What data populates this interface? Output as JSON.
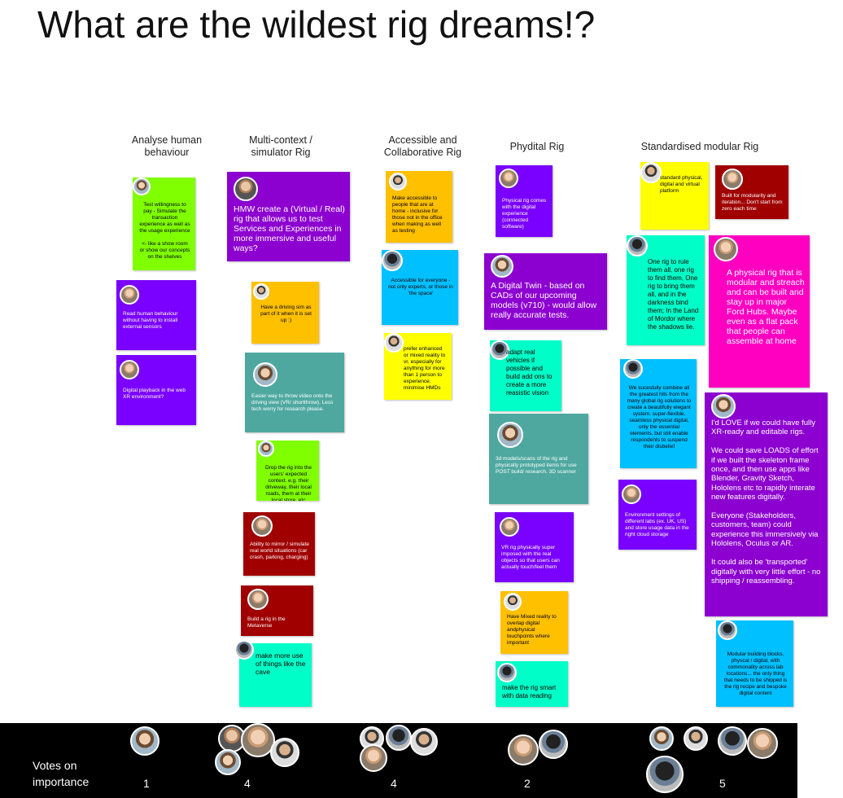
{
  "board": {
    "title": "What are the wildest rig dreams!?"
  },
  "columns": [
    "Analyse human behaviour",
    "Multi-context / simulator Rig",
    "Accessible and Collaborative Rig",
    "Phydital Rig",
    "Standardised modular Rig"
  ],
  "notes": {
    "c1_1": "Test willingness to pay - Simulate the transaction experience as well as the usage experience\n\n<- like a show room or show our concepts on the shelves",
    "c1_2": "Read human behaviour without having to install external sensors",
    "c1_3": "Digital playback in the web XR environment?",
    "c2_1": "HMW create a (Virtual / Real) rig that allows us to test Services and Experiences in more immersive and useful ways?",
    "c2_2": "Have a driving sim as part of it when it is set up :)",
    "c2_3": "Easier way to throw video onto the driving view (VR/ shortthrow). Less tech worry for research please.",
    "c2_4": "Drop the rig into the users' expected context. e.g. their driveway, their local roads, them at their local store, etc",
    "c2_5": "Ability to mirror / simulate real world situations (car crash, parking, charging)",
    "c2_6": "Build a rig in the Metaverse",
    "c2_7": "make more use of things like the cave",
    "c3_1": "Make accessible to people that are at home - inclusive for those not in the office when making as well as testing",
    "c3_2": "Accessible for everyone - not only experts, or those in 'the space'",
    "c3_3": "prefer enhanced or mixed reality to vr, especially for anything for more than 1 person to experience. minimise HMDs",
    "c4_1": "Physical rig comes with the digital experience (connected software)",
    "c4_2": "A Digital Twin - based on CADs of our upcoming models (v710) - would allow really accurate tests.",
    "c4_3": "adapt real vehicles if possible and build add ons to create a more reasistic vision",
    "c4_4": "3d models/scans of the rig and physically prototyped items for use POST build/ research. 3D scanner",
    "c4_5": "VR rig physically super imposed with the real objects so that users can actually touch/feel them",
    "c4_6": "Have Mixed reality to overlap digital andphysical touchpoints where important",
    "c4_7": "make the rig smart with data reading",
    "c5_1": "standard physical, digital and virtual platform",
    "c5_2": "Built for modularity and iteration... Don't start from zero each time",
    "c5_3": "One rig to rule them all, one rig to find them, One rig to bring them all, and in the darkness bind them; In the Land of Mordor where the shadows lie.",
    "c5_4": "A physical rig that is modular and streach and can be built and stay up in major Ford Hubs. Maybe even as a flat pack that people can assemble at home",
    "c5_5": "We sucesfully combine all the greatest hits from the many global rig solutions to create a beautifully elegant system, super-flexible, seamless physical digital, only the essential elements, but still enable respondents to suspend their disbelief",
    "c5_6": "I'd LOVE if we could have fully XR-ready and editable rigs.\n\nWe could save LOADS of effort if we built the skeleton frame once, and then use apps like Blender, Gravity Sketch, Hololens etc to rapidly interate new features digitally.\n\nEveryone (Stakeholders, customers, team) could experience this immersively via Hololens,  Oculus or AR.\n\nIt could also be 'transported' digitally with very little effort - no shipping / reassembling.",
    "c5_7": "Environment settings of different labs (ex. UK, US) and store usage data in the right cloud storage",
    "c5_8": "Modular building blocks, physcal / digital, with commonality across lab locations... the only thing that needs to be shipped is the rig recipe and bespoke digital content"
  },
  "votes": {
    "label": "Votes on\nimportance",
    "counts": [
      "1",
      "4",
      "4",
      "2",
      "5"
    ]
  },
  "colors": {
    "green": "#80ff00",
    "purple": "#7a00ff",
    "violet": "#8c00d0",
    "orange": "#ffc000",
    "cyan": "#00c0ff",
    "yellow": "#ffff00",
    "mint": "#00ffc8",
    "teal": "#4ea8a0",
    "darkred": "#a00000",
    "magenta": "#ff00c0"
  }
}
